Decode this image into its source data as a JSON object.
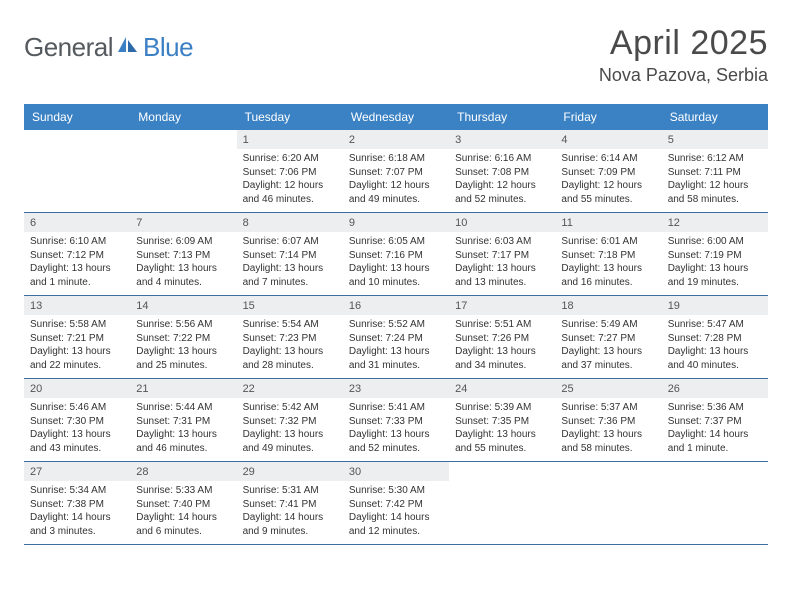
{
  "brand": {
    "part1": "General",
    "part2": "Blue"
  },
  "title": "April 2025",
  "location": "Nova Pazova, Serbia",
  "colors": {
    "header_bg": "#3b82c4",
    "header_text": "#ffffff",
    "daynum_bg": "#eceef0",
    "row_border": "#3b6fa0",
    "logo_gray": "#555a5f",
    "logo_blue": "#3b7fc4",
    "title_color": "#4a4a4a"
  },
  "weekdays": [
    "Sunday",
    "Monday",
    "Tuesday",
    "Wednesday",
    "Thursday",
    "Friday",
    "Saturday"
  ],
  "weeks": [
    [
      null,
      null,
      {
        "n": "1",
        "sr": "6:20 AM",
        "ss": "7:06 PM",
        "dl": "12 hours and 46 minutes."
      },
      {
        "n": "2",
        "sr": "6:18 AM",
        "ss": "7:07 PM",
        "dl": "12 hours and 49 minutes."
      },
      {
        "n": "3",
        "sr": "6:16 AM",
        "ss": "7:08 PM",
        "dl": "12 hours and 52 minutes."
      },
      {
        "n": "4",
        "sr": "6:14 AM",
        "ss": "7:09 PM",
        "dl": "12 hours and 55 minutes."
      },
      {
        "n": "5",
        "sr": "6:12 AM",
        "ss": "7:11 PM",
        "dl": "12 hours and 58 minutes."
      }
    ],
    [
      {
        "n": "6",
        "sr": "6:10 AM",
        "ss": "7:12 PM",
        "dl": "13 hours and 1 minute."
      },
      {
        "n": "7",
        "sr": "6:09 AM",
        "ss": "7:13 PM",
        "dl": "13 hours and 4 minutes."
      },
      {
        "n": "8",
        "sr": "6:07 AM",
        "ss": "7:14 PM",
        "dl": "13 hours and 7 minutes."
      },
      {
        "n": "9",
        "sr": "6:05 AM",
        "ss": "7:16 PM",
        "dl": "13 hours and 10 minutes."
      },
      {
        "n": "10",
        "sr": "6:03 AM",
        "ss": "7:17 PM",
        "dl": "13 hours and 13 minutes."
      },
      {
        "n": "11",
        "sr": "6:01 AM",
        "ss": "7:18 PM",
        "dl": "13 hours and 16 minutes."
      },
      {
        "n": "12",
        "sr": "6:00 AM",
        "ss": "7:19 PM",
        "dl": "13 hours and 19 minutes."
      }
    ],
    [
      {
        "n": "13",
        "sr": "5:58 AM",
        "ss": "7:21 PM",
        "dl": "13 hours and 22 minutes."
      },
      {
        "n": "14",
        "sr": "5:56 AM",
        "ss": "7:22 PM",
        "dl": "13 hours and 25 minutes."
      },
      {
        "n": "15",
        "sr": "5:54 AM",
        "ss": "7:23 PM",
        "dl": "13 hours and 28 minutes."
      },
      {
        "n": "16",
        "sr": "5:52 AM",
        "ss": "7:24 PM",
        "dl": "13 hours and 31 minutes."
      },
      {
        "n": "17",
        "sr": "5:51 AM",
        "ss": "7:26 PM",
        "dl": "13 hours and 34 minutes."
      },
      {
        "n": "18",
        "sr": "5:49 AM",
        "ss": "7:27 PM",
        "dl": "13 hours and 37 minutes."
      },
      {
        "n": "19",
        "sr": "5:47 AM",
        "ss": "7:28 PM",
        "dl": "13 hours and 40 minutes."
      }
    ],
    [
      {
        "n": "20",
        "sr": "5:46 AM",
        "ss": "7:30 PM",
        "dl": "13 hours and 43 minutes."
      },
      {
        "n": "21",
        "sr": "5:44 AM",
        "ss": "7:31 PM",
        "dl": "13 hours and 46 minutes."
      },
      {
        "n": "22",
        "sr": "5:42 AM",
        "ss": "7:32 PM",
        "dl": "13 hours and 49 minutes."
      },
      {
        "n": "23",
        "sr": "5:41 AM",
        "ss": "7:33 PM",
        "dl": "13 hours and 52 minutes."
      },
      {
        "n": "24",
        "sr": "5:39 AM",
        "ss": "7:35 PM",
        "dl": "13 hours and 55 minutes."
      },
      {
        "n": "25",
        "sr": "5:37 AM",
        "ss": "7:36 PM",
        "dl": "13 hours and 58 minutes."
      },
      {
        "n": "26",
        "sr": "5:36 AM",
        "ss": "7:37 PM",
        "dl": "14 hours and 1 minute."
      }
    ],
    [
      {
        "n": "27",
        "sr": "5:34 AM",
        "ss": "7:38 PM",
        "dl": "14 hours and 3 minutes."
      },
      {
        "n": "28",
        "sr": "5:33 AM",
        "ss": "7:40 PM",
        "dl": "14 hours and 6 minutes."
      },
      {
        "n": "29",
        "sr": "5:31 AM",
        "ss": "7:41 PM",
        "dl": "14 hours and 9 minutes."
      },
      {
        "n": "30",
        "sr": "5:30 AM",
        "ss": "7:42 PM",
        "dl": "14 hours and 12 minutes."
      },
      null,
      null,
      null
    ]
  ],
  "labels": {
    "sunrise": "Sunrise:",
    "sunset": "Sunset:",
    "daylight": "Daylight:"
  }
}
